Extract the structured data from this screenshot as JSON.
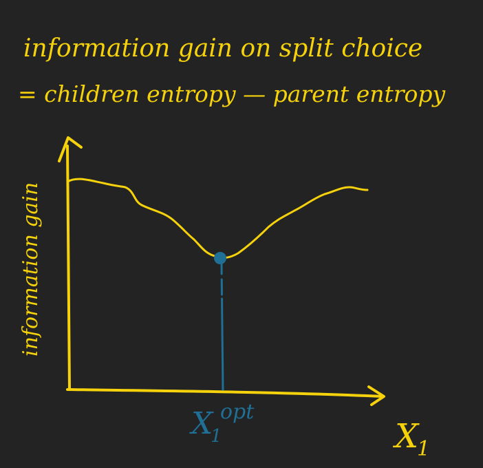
{
  "colors": {
    "background": "#232323",
    "ink_yellow": "#f5d20b",
    "ink_blue": "#1f6f96"
  },
  "title": {
    "line1": "information gain on split choice",
    "line2": "= children entropy — parent entropy"
  },
  "y_axis_label": "information gain",
  "x_opt_label": {
    "main": "X",
    "sub": "1",
    "sup": "opt"
  },
  "x_axis_label": {
    "main": "X",
    "sub": "1"
  }
}
